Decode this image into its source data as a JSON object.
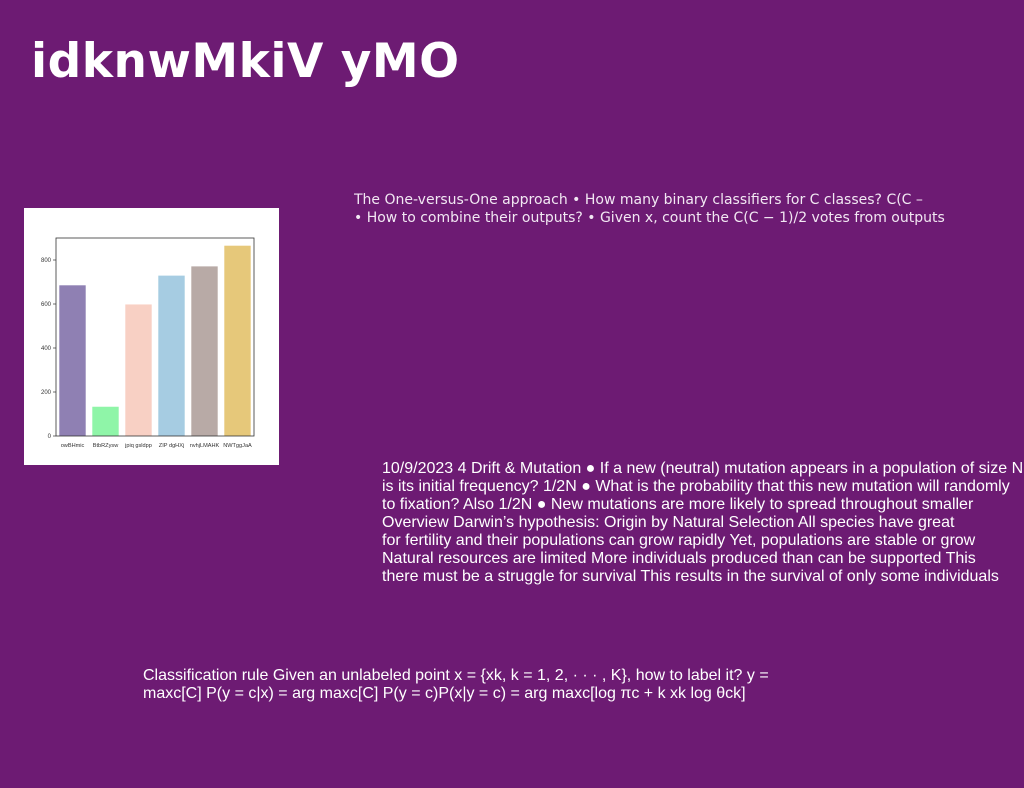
{
  "slide": {
    "title": "idknwMkiV yMO"
  },
  "text_blocks": {
    "one_vs_one": [
      "The One-versus-One approach • How many binary classifiers for C classes? C(C –",
      "• How to combine their outputs? • Given x, count the C(C − 1)/2 votes from outputs"
    ],
    "drift_mutation": [
      "10/9/2023 4 Drift & Mutation ● If a new (neutral) mutation appears in a population of size N,",
      "is its initial frequency? 1/2N ● What is the probability that this new mutation will randomly",
      "to fixation? Also 1/2N ● New mutations are more likely to spread throughout smaller",
      "Overview Darwin’s hypothesis: Origin by Natural Selection All species have great",
      "for fertility and their populations can grow rapidly Yet, populations are stable or grow",
      "Natural resources are limited More individuals produced than can be supported This",
      "there must be a struggle for survival This results in the survival of only some individuals"
    ],
    "classification_rule": [
      "Classification rule Given an unlabeled point x = {xk, k = 1, 2, · · · , K}, how to label it? y  =",
      "maxc[C] P(y = c|x) = arg maxc[C] P(y = c)P(x|y = c) = arg maxc[log πc +  k xk log θck]"
    ]
  },
  "chart_data": {
    "type": "bar",
    "categories": [
      "owBHmic",
      "BtbRZysw",
      "jpiq gsldpp",
      "ZIP dgHXj",
      "nvhjLMAHK",
      "NWTggJaA"
    ],
    "values": [
      685,
      133,
      598,
      729,
      771,
      865
    ],
    "colors": [
      "#8f80b3",
      "#8ff5a8",
      "#f8d0c4",
      "#a6cce2",
      "#b8aaa6",
      "#e6c87a"
    ],
    "yticks": [
      0,
      200,
      400,
      600,
      800
    ],
    "ylim": [
      0,
      900
    ],
    "grid": false,
    "title": "",
    "xlabel": "",
    "ylabel": ""
  }
}
